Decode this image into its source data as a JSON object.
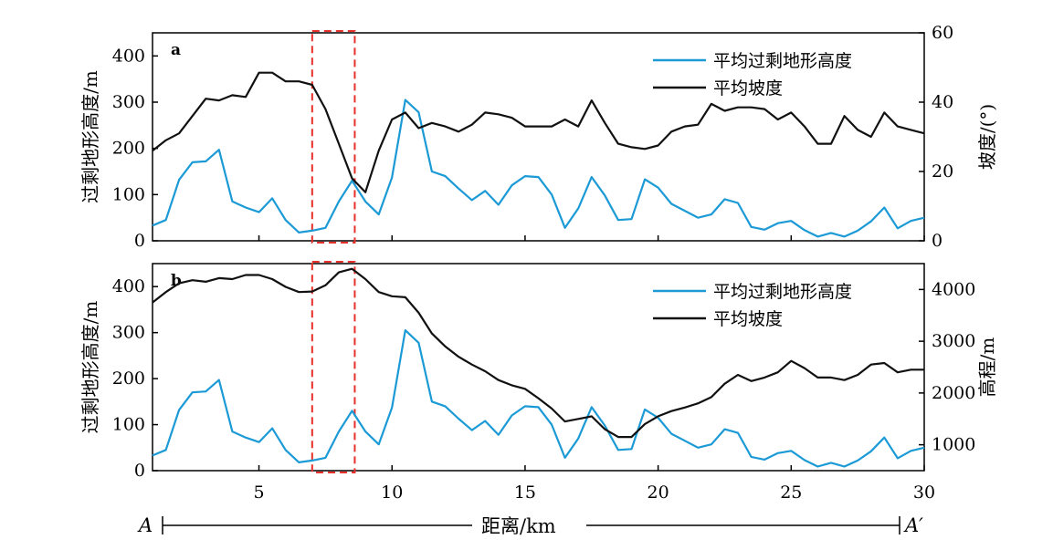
{
  "colors": {
    "excess": "#1b9ad6",
    "second": "#111111",
    "highlight": "#e8302b"
  },
  "profile": {
    "start": "A",
    "end": "A′",
    "xlabel": "距离/km"
  },
  "chart_data": [
    {
      "type": "line",
      "panel": "a",
      "xlim": [
        1,
        30
      ],
      "xticks": [
        5,
        10,
        15,
        20,
        25,
        30
      ],
      "ylabel_left": "过剩地形高度/m",
      "ylim_left": [
        0,
        450
      ],
      "yticks_left": [
        0,
        100,
        200,
        300,
        400
      ],
      "ylabel_right": "坡度/(°)",
      "ylim_right": [
        0,
        60
      ],
      "yticks_right": [
        0,
        20,
        40,
        60
      ],
      "highlight_x": [
        7.0,
        8.6
      ],
      "legend": [
        "平均过剩地形高度",
        "平均坡度"
      ],
      "series": [
        {
          "name": "平均过剩地形高度",
          "axis": "left",
          "x": [
            1,
            1.5,
            2,
            2.5,
            3,
            3.5,
            4,
            4.5,
            5,
            5.5,
            6,
            6.5,
            7,
            7.5,
            8,
            8.5,
            9,
            9.5,
            10,
            10.5,
            11,
            11.5,
            12,
            12.5,
            13,
            13.5,
            14,
            14.5,
            15,
            15.5,
            16,
            16.5,
            17,
            17.5,
            18,
            18.5,
            19,
            19.5,
            20,
            20.5,
            21,
            21.5,
            22,
            22.5,
            23,
            23.5,
            24,
            24.5,
            25,
            25.5,
            26,
            26.5,
            27,
            27.5,
            28,
            28.5,
            29,
            29.5,
            30
          ],
          "values": [
            33,
            45,
            132,
            170,
            172,
            197,
            85,
            72,
            62,
            92,
            45,
            18,
            22,
            28,
            85,
            130,
            85,
            57,
            137,
            305,
            278,
            150,
            140,
            113,
            88,
            108,
            78,
            120,
            140,
            138,
            100,
            28,
            70,
            138,
            98,
            45,
            47,
            133,
            115,
            80,
            65,
            50,
            57,
            90,
            82,
            30,
            24,
            38,
            43,
            23,
            9,
            17,
            9,
            22,
            42,
            72,
            27,
            43,
            50
          ]
        },
        {
          "name": "平均坡度",
          "axis": "right",
          "x": [
            1,
            1.5,
            2,
            2.5,
            3,
            3.5,
            4,
            4.5,
            5,
            5.5,
            6,
            6.5,
            7,
            7.5,
            8,
            8.5,
            9,
            9.5,
            10,
            10.5,
            11,
            11.5,
            12,
            12.5,
            13,
            13.5,
            14,
            14.5,
            15,
            15.5,
            16,
            16.5,
            17,
            17.5,
            18,
            18.5,
            19,
            19.5,
            20,
            20.5,
            21,
            21.5,
            22,
            22.5,
            23,
            23.5,
            24,
            24.5,
            25,
            25.5,
            26,
            26.5,
            27,
            27.5,
            28,
            28.5,
            29,
            29.5,
            30
          ],
          "values": [
            26,
            29,
            31,
            36,
            41,
            40.5,
            42,
            41.5,
            48.5,
            48.5,
            46,
            46,
            45,
            38,
            28,
            18,
            14,
            26,
            35,
            37,
            32.5,
            34,
            33,
            31.5,
            33.5,
            37,
            36.5,
            35.5,
            33,
            33,
            33,
            35,
            33,
            40.5,
            34,
            28,
            27,
            26.5,
            27.5,
            31.5,
            33,
            33.5,
            39.5,
            37.5,
            38.5,
            38.5,
            38,
            35,
            37,
            33,
            28,
            28,
            36,
            32,
            30,
            37,
            33,
            32,
            31
          ]
        }
      ]
    },
    {
      "type": "line",
      "panel": "b",
      "xlim": [
        1,
        30
      ],
      "xticks": [
        5,
        10,
        15,
        20,
        25,
        30
      ],
      "ylabel_left": "过剩地形高度/m",
      "ylim_left": [
        0,
        450
      ],
      "yticks_left": [
        0,
        100,
        200,
        300,
        400
      ],
      "ylabel_right": "高程/m",
      "ylim_right": [
        500,
        4500
      ],
      "yticks_right": [
        1000,
        2000,
        3000,
        4000
      ],
      "highlight_x": [
        7.0,
        8.6
      ],
      "legend": [
        "平均过剩地形高度",
        "平均坡度"
      ],
      "series": [
        {
          "name": "平均过剩地形高度",
          "axis": "left",
          "x": [
            1,
            1.5,
            2,
            2.5,
            3,
            3.5,
            4,
            4.5,
            5,
            5.5,
            6,
            6.5,
            7,
            7.5,
            8,
            8.5,
            9,
            9.5,
            10,
            10.5,
            11,
            11.5,
            12,
            12.5,
            13,
            13.5,
            14,
            14.5,
            15,
            15.5,
            16,
            16.5,
            17,
            17.5,
            18,
            18.5,
            19,
            19.5,
            20,
            20.5,
            21,
            21.5,
            22,
            22.5,
            23,
            23.5,
            24,
            24.5,
            25,
            25.5,
            26,
            26.5,
            27,
            27.5,
            28,
            28.5,
            29,
            29.5,
            30
          ],
          "values": [
            33,
            45,
            132,
            170,
            172,
            197,
            85,
            72,
            62,
            92,
            45,
            18,
            22,
            28,
            85,
            130,
            85,
            57,
            137,
            305,
            278,
            150,
            140,
            113,
            88,
            108,
            78,
            120,
            140,
            138,
            100,
            28,
            70,
            138,
            98,
            45,
            47,
            133,
            115,
            80,
            65,
            50,
            57,
            90,
            82,
            30,
            24,
            38,
            43,
            23,
            9,
            17,
            9,
            22,
            42,
            72,
            27,
            43,
            50
          ]
        },
        {
          "name": "平均坡度",
          "axis": "right",
          "x": [
            1,
            1.5,
            2,
            2.5,
            3,
            3.5,
            4,
            4.5,
            5,
            5.5,
            6,
            6.5,
            7,
            7.5,
            8,
            8.5,
            9,
            9.5,
            10,
            10.5,
            11,
            11.5,
            12,
            12.5,
            13,
            13.5,
            14,
            14.5,
            15,
            15.5,
            16,
            16.5,
            17,
            17.5,
            18,
            18.5,
            19,
            19.5,
            20,
            20.5,
            21,
            21.5,
            22,
            22.5,
            23,
            23.5,
            24,
            24.5,
            25,
            25.5,
            26,
            26.5,
            27,
            27.5,
            28,
            28.5,
            29,
            29.5,
            30
          ],
          "values": [
            3750,
            3950,
            4120,
            4180,
            4150,
            4220,
            4200,
            4280,
            4280,
            4200,
            4050,
            3950,
            3960,
            4080,
            4330,
            4400,
            4200,
            3950,
            3870,
            3850,
            3550,
            3150,
            2900,
            2700,
            2550,
            2420,
            2250,
            2150,
            2080,
            1900,
            1700,
            1450,
            1500,
            1550,
            1300,
            1150,
            1150,
            1400,
            1550,
            1650,
            1720,
            1800,
            1920,
            2180,
            2350,
            2230,
            2300,
            2400,
            2620,
            2480,
            2300,
            2300,
            2250,
            2350,
            2550,
            2580,
            2400,
            2450,
            2450
          ]
        }
      ]
    }
  ]
}
